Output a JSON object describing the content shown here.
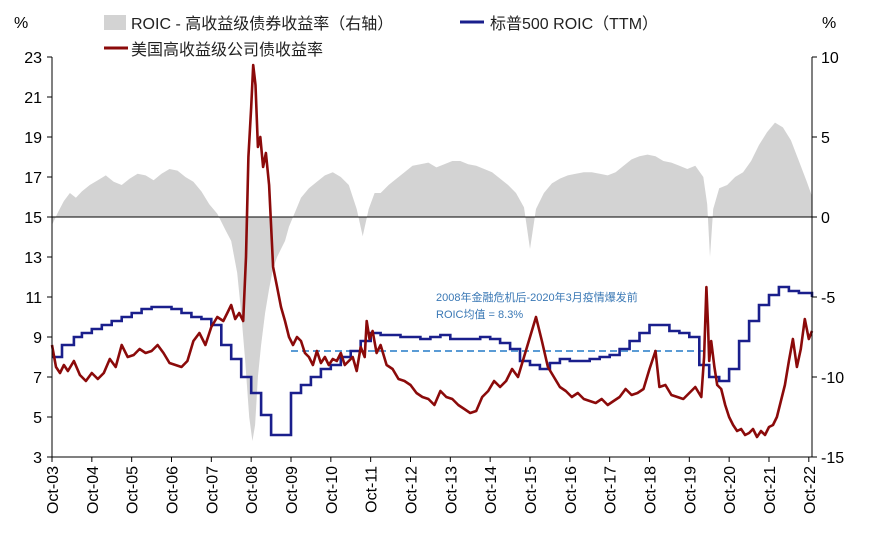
{
  "chart_data": {
    "type": "line",
    "title": "",
    "left_axis_unit": "%",
    "right_axis_unit": "%",
    "ylim_left": [
      3,
      23
    ],
    "ylim_right": [
      -15,
      10
    ],
    "left_ticks": [
      "3",
      "5",
      "7",
      "9",
      "11",
      "13",
      "15",
      "17",
      "19",
      "21",
      "23"
    ],
    "right_ticks": [
      "-15",
      "-10",
      "-5",
      "0",
      "5",
      "10"
    ],
    "x_ticks": [
      "Oct-03",
      "Oct-04",
      "Oct-05",
      "Oct-06",
      "Oct-07",
      "Oct-08",
      "Oct-09",
      "Oct-10",
      "Oct-11",
      "Oct-12",
      "Oct-13",
      "Oct-14",
      "Oct-15",
      "Oct-16",
      "Oct-17",
      "Oct-18",
      "Oct-19",
      "Oct-20",
      "Oct-21",
      "Oct-22"
    ],
    "xlim": [
      2003.75,
      2022.83
    ],
    "legend": [
      "ROIC - 高收益级债券收益率（右轴）",
      "标普500 ROIC（TTM）",
      "美国高收益级公司债收益率"
    ],
    "annotation": {
      "line1": "2008年金融危机后-2020年3月疫情爆发前",
      "line2": "ROIC均值 = 8.3%",
      "value": 8.3,
      "x_range": [
        2009.75,
        2020.2
      ]
    },
    "colors": {
      "spread_area": "#d3d3d3",
      "roic": "#1a1f8c",
      "hy_yield": "#8b0a0a",
      "mean_line": "#5a9bd5",
      "annotation_text": "#3a78b5"
    },
    "series": [
      {
        "name": "ROIC - 高收益级债券收益率（右轴）",
        "axis": "right",
        "kind": "area",
        "x": [
          2003.75,
          2003.9,
          2004.05,
          2004.2,
          2004.35,
          2004.5,
          2004.7,
          2004.9,
          2005.1,
          2005.3,
          2005.5,
          2005.7,
          2005.9,
          2006.1,
          2006.3,
          2006.5,
          2006.7,
          2006.9,
          2007.1,
          2007.3,
          2007.5,
          2007.7,
          2007.9,
          2008.1,
          2008.25,
          2008.4,
          2008.5,
          2008.6,
          2008.7,
          2008.78,
          2008.85,
          2008.92,
          2009.0,
          2009.1,
          2009.2,
          2009.3,
          2009.4,
          2009.5,
          2009.6,
          2009.7,
          2009.85,
          2010.0,
          2010.2,
          2010.4,
          2010.6,
          2010.8,
          2011.0,
          2011.2,
          2011.4,
          2011.55,
          2011.7,
          2011.85,
          2012.0,
          2012.2,
          2012.4,
          2012.6,
          2012.8,
          2013.0,
          2013.2,
          2013.4,
          2013.6,
          2013.8,
          2014.0,
          2014.2,
          2014.4,
          2014.6,
          2014.8,
          2015.0,
          2015.2,
          2015.4,
          2015.6,
          2015.75,
          2015.9,
          2016.1,
          2016.3,
          2016.5,
          2016.7,
          2016.9,
          2017.1,
          2017.3,
          2017.5,
          2017.7,
          2017.9,
          2018.1,
          2018.3,
          2018.5,
          2018.7,
          2018.9,
          2019.1,
          2019.3,
          2019.5,
          2019.7,
          2019.9,
          2020.1,
          2020.2,
          2020.27,
          2020.35,
          2020.5,
          2020.7,
          2020.9,
          2021.1,
          2021.3,
          2021.5,
          2021.7,
          2021.9,
          2022.1,
          2022.3,
          2022.5,
          2022.7,
          2022.83
        ],
        "y": [
          -0.5,
          0.3,
          1.0,
          1.5,
          1.2,
          1.6,
          2.0,
          2.3,
          2.6,
          2.2,
          2.0,
          2.4,
          2.7,
          2.6,
          2.3,
          2.7,
          3.0,
          2.9,
          2.5,
          2.2,
          1.6,
          0.8,
          0.2,
          -0.8,
          -1.5,
          -3.5,
          -6.0,
          -9.0,
          -12.5,
          -14.0,
          -13.0,
          -10.0,
          -8.0,
          -6.0,
          -4.5,
          -3.2,
          -2.5,
          -2.0,
          -1.5,
          -0.6,
          0.3,
          1.2,
          1.8,
          2.2,
          2.6,
          2.8,
          2.5,
          2.0,
          0.5,
          -1.2,
          0.5,
          1.5,
          1.5,
          2.0,
          2.4,
          2.8,
          3.2,
          3.3,
          3.4,
          3.1,
          3.3,
          3.5,
          3.5,
          3.3,
          3.2,
          3.0,
          2.8,
          2.4,
          2.0,
          1.5,
          0.6,
          -2.0,
          0.5,
          1.5,
          2.1,
          2.4,
          2.6,
          2.7,
          2.8,
          2.8,
          2.7,
          2.6,
          2.8,
          3.2,
          3.6,
          3.8,
          3.9,
          3.8,
          3.5,
          3.4,
          3.2,
          3.0,
          3.2,
          2.5,
          0.8,
          -2.5,
          0.5,
          1.8,
          2.0,
          2.5,
          2.8,
          3.5,
          4.5,
          5.3,
          5.9,
          5.6,
          4.8,
          3.5,
          2.2,
          1.3
        ]
      },
      {
        "name": "标普500 ROIC（TTM）",
        "axis": "left",
        "kind": "step",
        "x": [
          2003.75,
          2004.0,
          2004.3,
          2004.5,
          2004.75,
          2005.0,
          2005.25,
          2005.5,
          2005.75,
          2006.0,
          2006.25,
          2006.5,
          2006.75,
          2007.0,
          2007.25,
          2007.5,
          2007.75,
          2008.0,
          2008.25,
          2008.5,
          2008.75,
          2009.0,
          2009.25,
          2009.5,
          2009.75,
          2010.0,
          2010.25,
          2010.5,
          2010.75,
          2011.0,
          2011.25,
          2011.5,
          2011.75,
          2012.0,
          2012.25,
          2012.5,
          2012.75,
          2013.0,
          2013.25,
          2013.5,
          2013.75,
          2014.0,
          2014.25,
          2014.5,
          2014.75,
          2015.0,
          2015.25,
          2015.5,
          2015.75,
          2016.0,
          2016.25,
          2016.5,
          2016.75,
          2017.0,
          2017.25,
          2017.5,
          2017.75,
          2018.0,
          2018.25,
          2018.5,
          2018.75,
          2019.0,
          2019.25,
          2019.5,
          2019.75,
          2020.0,
          2020.25,
          2020.5,
          2020.75,
          2021.0,
          2021.25,
          2021.5,
          2021.75,
          2022.0,
          2022.25,
          2022.5,
          2022.83
        ],
        "y": [
          8.0,
          8.6,
          9.0,
          9.2,
          9.4,
          9.6,
          9.8,
          10.0,
          10.2,
          10.4,
          10.5,
          10.5,
          10.4,
          10.2,
          10.0,
          9.9,
          9.6,
          8.6,
          7.9,
          7.0,
          6.2,
          5.1,
          4.1,
          4.1,
          6.2,
          6.6,
          7.0,
          7.4,
          7.6,
          8.0,
          8.3,
          8.8,
          9.2,
          9.1,
          9.1,
          9.0,
          9.0,
          8.9,
          9.0,
          9.1,
          8.9,
          8.9,
          8.9,
          9.0,
          8.9,
          8.7,
          8.4,
          7.8,
          7.6,
          7.4,
          7.7,
          7.9,
          7.8,
          7.8,
          7.9,
          8.0,
          8.1,
          8.4,
          8.8,
          9.2,
          9.6,
          9.6,
          9.3,
          9.2,
          9.0,
          7.6,
          7.0,
          6.8,
          7.4,
          8.8,
          9.8,
          10.6,
          11.1,
          11.5,
          11.3,
          11.2,
          11.0
        ]
      },
      {
        "name": "美国高收益级公司债收益率",
        "axis": "left",
        "kind": "line",
        "x": [
          2003.75,
          2003.85,
          2003.95,
          2004.05,
          2004.15,
          2004.3,
          2004.45,
          2004.6,
          2004.75,
          2004.9,
          2005.05,
          2005.2,
          2005.35,
          2005.5,
          2005.65,
          2005.8,
          2005.95,
          2006.1,
          2006.25,
          2006.4,
          2006.55,
          2006.7,
          2006.85,
          2007.0,
          2007.15,
          2007.3,
          2007.45,
          2007.6,
          2007.75,
          2007.9,
          2008.05,
          2008.15,
          2008.25,
          2008.35,
          2008.45,
          2008.55,
          2008.62,
          2008.68,
          2008.75,
          2008.8,
          2008.86,
          2008.92,
          2008.98,
          2009.05,
          2009.12,
          2009.2,
          2009.3,
          2009.4,
          2009.5,
          2009.6,
          2009.7,
          2009.8,
          2009.9,
          2010.0,
          2010.1,
          2010.2,
          2010.3,
          2010.4,
          2010.5,
          2010.6,
          2010.7,
          2010.8,
          2010.9,
          2011.0,
          2011.1,
          2011.2,
          2011.3,
          2011.4,
          2011.5,
          2011.6,
          2011.65,
          2011.72,
          2011.8,
          2011.9,
          2012.0,
          2012.15,
          2012.3,
          2012.45,
          2012.6,
          2012.75,
          2012.9,
          2013.05,
          2013.2,
          2013.35,
          2013.5,
          2013.65,
          2013.8,
          2013.95,
          2014.1,
          2014.25,
          2014.4,
          2014.55,
          2014.7,
          2014.85,
          2015.0,
          2015.15,
          2015.3,
          2015.45,
          2015.6,
          2015.75,
          2015.9,
          2016.05,
          2016.2,
          2016.35,
          2016.5,
          2016.65,
          2016.8,
          2016.95,
          2017.1,
          2017.25,
          2017.4,
          2017.55,
          2017.7,
          2017.85,
          2018.0,
          2018.15,
          2018.3,
          2018.45,
          2018.6,
          2018.75,
          2018.9,
          2019.0,
          2019.15,
          2019.3,
          2019.45,
          2019.6,
          2019.75,
          2019.9,
          2020.05,
          2020.12,
          2020.18,
          2020.22,
          2020.25,
          2020.3,
          2020.38,
          2020.45,
          2020.55,
          2020.65,
          2020.75,
          2020.85,
          2020.95,
          2021.05,
          2021.15,
          2021.25,
          2021.35,
          2021.45,
          2021.55,
          2021.65,
          2021.75,
          2021.85,
          2021.95,
          2022.05,
          2022.15,
          2022.25,
          2022.35,
          2022.45,
          2022.55,
          2022.65,
          2022.75,
          2022.83
        ],
        "y": [
          8.6,
          7.5,
          7.2,
          7.6,
          7.3,
          7.8,
          7.1,
          6.8,
          7.2,
          6.9,
          7.2,
          7.9,
          7.5,
          8.6,
          8.0,
          8.1,
          8.4,
          8.2,
          8.3,
          8.6,
          8.2,
          7.7,
          7.6,
          7.5,
          7.8,
          8.8,
          9.2,
          8.6,
          9.5,
          10.0,
          9.8,
          10.2,
          10.6,
          9.9,
          10.2,
          9.8,
          13.0,
          18.0,
          20.5,
          22.6,
          21.6,
          18.5,
          19.0,
          17.5,
          18.2,
          16.6,
          12.5,
          11.5,
          10.5,
          9.8,
          9.0,
          8.6,
          9.0,
          8.8,
          8.2,
          8.0,
          7.6,
          8.3,
          7.7,
          8.0,
          7.6,
          7.9,
          7.8,
          8.2,
          7.6,
          7.8,
          8.0,
          7.3,
          8.5,
          8.0,
          9.8,
          8.9,
          9.3,
          8.2,
          8.6,
          7.6,
          7.4,
          6.9,
          6.8,
          6.6,
          6.2,
          6.0,
          5.9,
          5.6,
          6.3,
          6.0,
          5.9,
          5.6,
          5.4,
          5.2,
          5.3,
          6.0,
          6.3,
          6.8,
          6.5,
          6.8,
          7.4,
          7.0,
          8.0,
          9.0,
          10.0,
          8.8,
          7.5,
          7.0,
          6.5,
          6.3,
          6.0,
          6.2,
          5.9,
          5.8,
          5.7,
          5.9,
          5.6,
          5.8,
          6.0,
          6.4,
          6.1,
          6.2,
          6.4,
          7.4,
          8.3,
          6.5,
          6.6,
          6.1,
          6.0,
          5.9,
          6.2,
          6.5,
          6.0,
          8.0,
          11.5,
          9.6,
          7.8,
          8.8,
          7.5,
          6.6,
          6.4,
          5.6,
          5.0,
          4.6,
          4.3,
          4.4,
          4.1,
          4.2,
          4.4,
          4.0,
          4.3,
          4.1,
          4.5,
          4.6,
          5.0,
          5.8,
          6.6,
          7.8,
          8.9,
          7.5,
          8.4,
          9.9,
          8.9,
          9.3
        ]
      }
    ]
  }
}
